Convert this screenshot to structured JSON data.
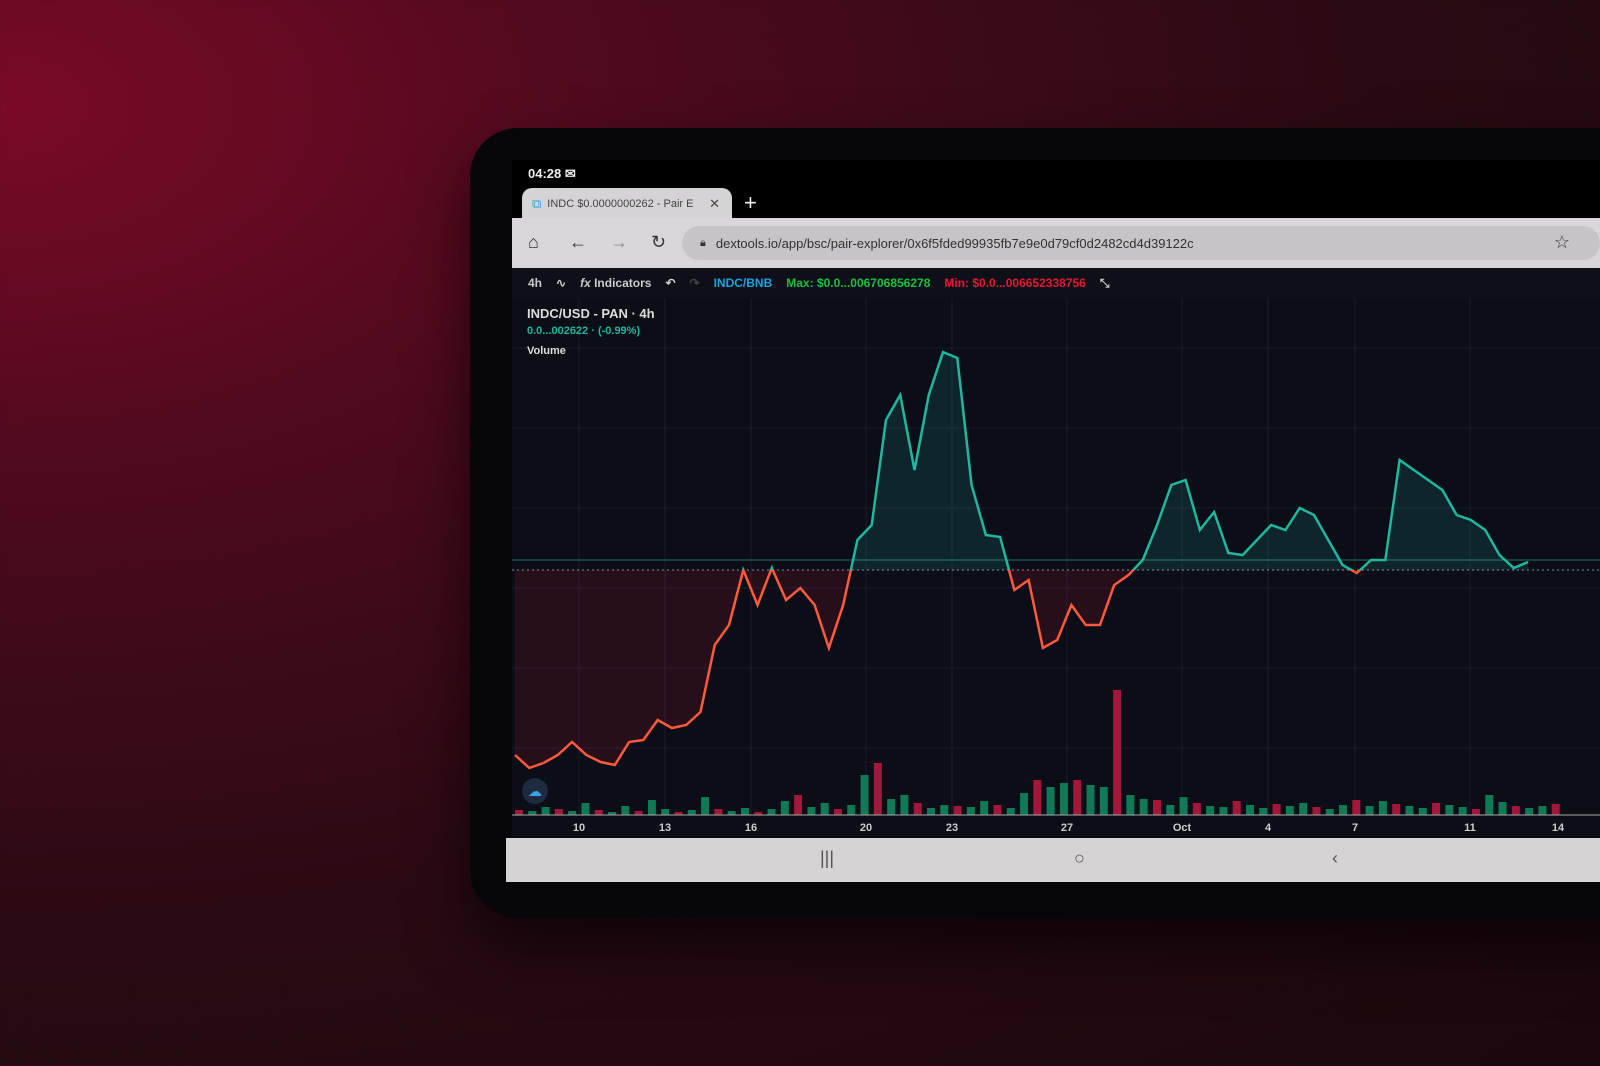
{
  "status_bar": {
    "time": "04:28",
    "icon": "mail-icon"
  },
  "browser": {
    "tab_title": "INDC $0.0000000262 - Pair E",
    "url": "dextools.io/app/bsc/pair-explorer/0x6f5fded99935fb7e9e0d79cf0d2482cd4d39122c"
  },
  "toolbar": {
    "interval": "4h",
    "indicators_label": "Indicators",
    "pair": "INDC/BNB",
    "max": "Max: $0.0...006706856278",
    "min": "Min: $0.0...006652338756",
    "colors": {
      "pair": "#1aa3e0",
      "max": "#19c13c",
      "min": "#e8192f"
    }
  },
  "chart_data": {
    "type": "line",
    "title": "INDC/USD - PAN · 4h",
    "price_change": "0.0...002622 · (-0.99%)",
    "volume_label": "Volume",
    "x_ticks": [
      "10",
      "13",
      "16",
      "20",
      "23",
      "27",
      "Oct",
      "4",
      "7",
      "11",
      "14"
    ],
    "colors": {
      "up": "#1fb79f",
      "down": "#ff5a3c",
      "vol_up": "#0f7a55",
      "vol_down": "#a3173a"
    },
    "series": [
      {
        "values": [
          60,
          47,
          52,
          60,
          73,
          60,
          53,
          50,
          73,
          75,
          95,
          87,
          90,
          103,
          170,
          190,
          245,
          210,
          247,
          215,
          227,
          210,
          167,
          210,
          275,
          290,
          395,
          420,
          345,
          420,
          463,
          457,
          330,
          280,
          278,
          225,
          235,
          167,
          175,
          210,
          190,
          190,
          230,
          240,
          255,
          290,
          330,
          335,
          285,
          303,
          262,
          260,
          275,
          290,
          285,
          307,
          300,
          275,
          250,
          242,
          255,
          255,
          355,
          345,
          335,
          325,
          300,
          295,
          285,
          260,
          247,
          253
        ]
      }
    ],
    "reference_value": 245,
    "volume": [
      5,
      4,
      8,
      6,
      4,
      12,
      5,
      3,
      9,
      4,
      15,
      6,
      3,
      5,
      18,
      6,
      4,
      7,
      3,
      6,
      14,
      20,
      8,
      12,
      6,
      10,
      40,
      52,
      16,
      20,
      12,
      7,
      10,
      9,
      8,
      14,
      10,
      7,
      22,
      35,
      28,
      32,
      35,
      30,
      28,
      125,
      20,
      16,
      15,
      10,
      18,
      12,
      9,
      8,
      14,
      10,
      7,
      11,
      9,
      12,
      8,
      6,
      10,
      15,
      9,
      14,
      11,
      9,
      7,
      12,
      10,
      8,
      6,
      20,
      13,
      9,
      7,
      9,
      11
    ]
  },
  "system_nav": {
    "recents": "|||",
    "home": "○",
    "back": "‹"
  }
}
